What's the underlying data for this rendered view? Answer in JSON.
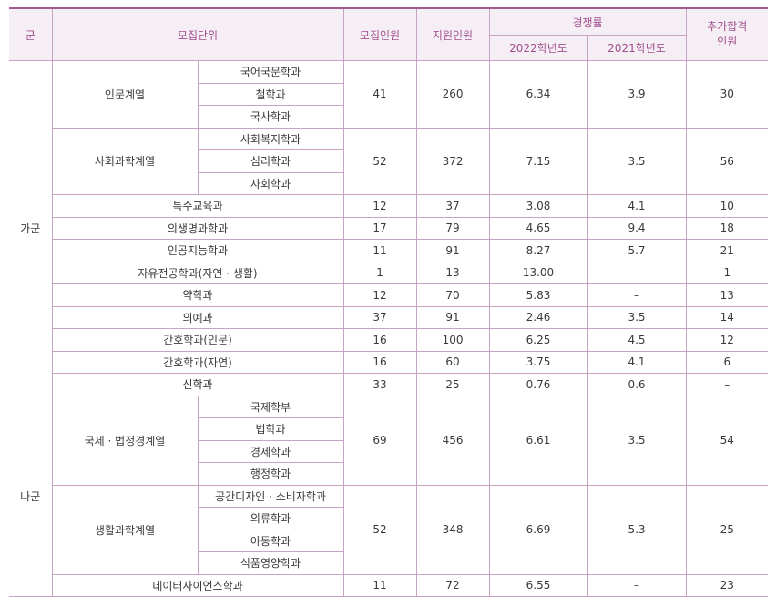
{
  "header": {
    "gun": "군",
    "unit": "모집단위",
    "quota": "모집인원",
    "applicants": "지원인원",
    "competition": "경쟁률",
    "y2022": "2022학년도",
    "y2021": "2021학년도",
    "additional": "추가합격\n인원"
  },
  "sections": [
    {
      "gun": "가군",
      "groups": [
        {
          "name": "인문계열",
          "subs": [
            "국어국문학과",
            "철학과",
            "국사학과"
          ],
          "quota": "41",
          "applicants": "260",
          "r2022": "6.34",
          "r2021": "3.9",
          "add": "30"
        },
        {
          "name": "사회과학계열",
          "subs": [
            "사회복지학과",
            "심리학과",
            "사회학과"
          ],
          "quota": "52",
          "applicants": "372",
          "r2022": "7.15",
          "r2021": "3.5",
          "add": "56"
        },
        {
          "name": "특수교육과",
          "subs": [],
          "quota": "12",
          "applicants": "37",
          "r2022": "3.08",
          "r2021": "4.1",
          "add": "10"
        },
        {
          "name": "의생명과학과",
          "subs": [],
          "quota": "17",
          "applicants": "79",
          "r2022": "4.65",
          "r2021": "9.4",
          "add": "18"
        },
        {
          "name": "인공지능학과",
          "subs": [],
          "quota": "11",
          "applicants": "91",
          "r2022": "8.27",
          "r2021": "5.7",
          "add": "21"
        },
        {
          "name": "자유전공학과(자연 · 생활)",
          "subs": [],
          "quota": "1",
          "applicants": "13",
          "r2022": "13.00",
          "r2021": "–",
          "add": "1"
        },
        {
          "name": "약학과",
          "subs": [],
          "quota": "12",
          "applicants": "70",
          "r2022": "5.83",
          "r2021": "–",
          "add": "13"
        },
        {
          "name": "의예과",
          "subs": [],
          "quota": "37",
          "applicants": "91",
          "r2022": "2.46",
          "r2021": "3.5",
          "add": "14"
        },
        {
          "name": "간호학과(인문)",
          "subs": [],
          "quota": "16",
          "applicants": "100",
          "r2022": "6.25",
          "r2021": "4.5",
          "add": "12"
        },
        {
          "name": "간호학과(자연)",
          "subs": [],
          "quota": "16",
          "applicants": "60",
          "r2022": "3.75",
          "r2021": "4.1",
          "add": "6"
        },
        {
          "name": "신학과",
          "subs": [],
          "quota": "33",
          "applicants": "25",
          "r2022": "0.76",
          "r2021": "0.6",
          "add": "–"
        }
      ]
    },
    {
      "gun": "나군",
      "groups": [
        {
          "name": "국제 · 법정경계열",
          "subs": [
            "국제학부",
            "법학과",
            "경제학과",
            "행정학과"
          ],
          "quota": "69",
          "applicants": "456",
          "r2022": "6.61",
          "r2021": "3.5",
          "add": "54"
        },
        {
          "name": "생활과학계열",
          "subs": [
            "공간디자인 · 소비자학과",
            "의류학과",
            "아동학과",
            "식품영양학과"
          ],
          "quota": "52",
          "applicants": "348",
          "r2022": "6.69",
          "r2021": "5.3",
          "add": "25"
        },
        {
          "name": "데이터사이언스학과",
          "subs": [],
          "quota": "11",
          "applicants": "72",
          "r2022": "6.55",
          "r2021": "–",
          "add": "23"
        }
      ]
    }
  ]
}
